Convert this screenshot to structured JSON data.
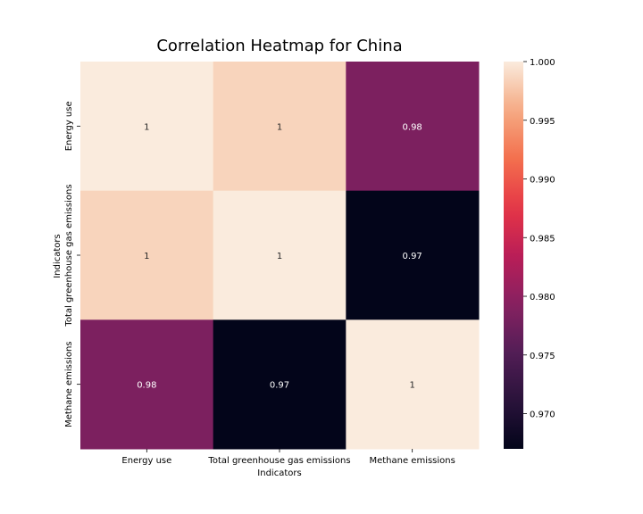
{
  "chart_data": {
    "type": "heatmap",
    "title": "Correlation Heatmap for China",
    "xlabel": "Indicators",
    "ylabel": "Indicators",
    "x_categories": [
      "Energy use",
      "Total greenhouse gas emissions",
      "Methane emissions"
    ],
    "y_categories": [
      "Energy use",
      "Total greenhouse gas emissions",
      "Methane emissions"
    ],
    "values": [
      [
        1.0,
        0.9985,
        0.9785
      ],
      [
        0.9985,
        1.0,
        0.967
      ],
      [
        0.9785,
        0.967,
        1.0
      ]
    ],
    "annotations": [
      [
        "1",
        "1",
        "0.98"
      ],
      [
        "1",
        "1",
        "0.97"
      ],
      [
        "0.98",
        "0.97",
        "1"
      ]
    ],
    "colorbar": {
      "min": 0.967,
      "max": 1.0,
      "ticks": [
        "1.000",
        "0.995",
        "0.990",
        "0.985",
        "0.980",
        "0.975",
        "0.970"
      ],
      "tick_values": [
        1.0,
        0.995,
        0.99,
        0.985,
        0.98,
        0.975,
        0.97
      ]
    },
    "colormap": "rocket",
    "grid": false,
    "legend": "colorbar-right"
  }
}
